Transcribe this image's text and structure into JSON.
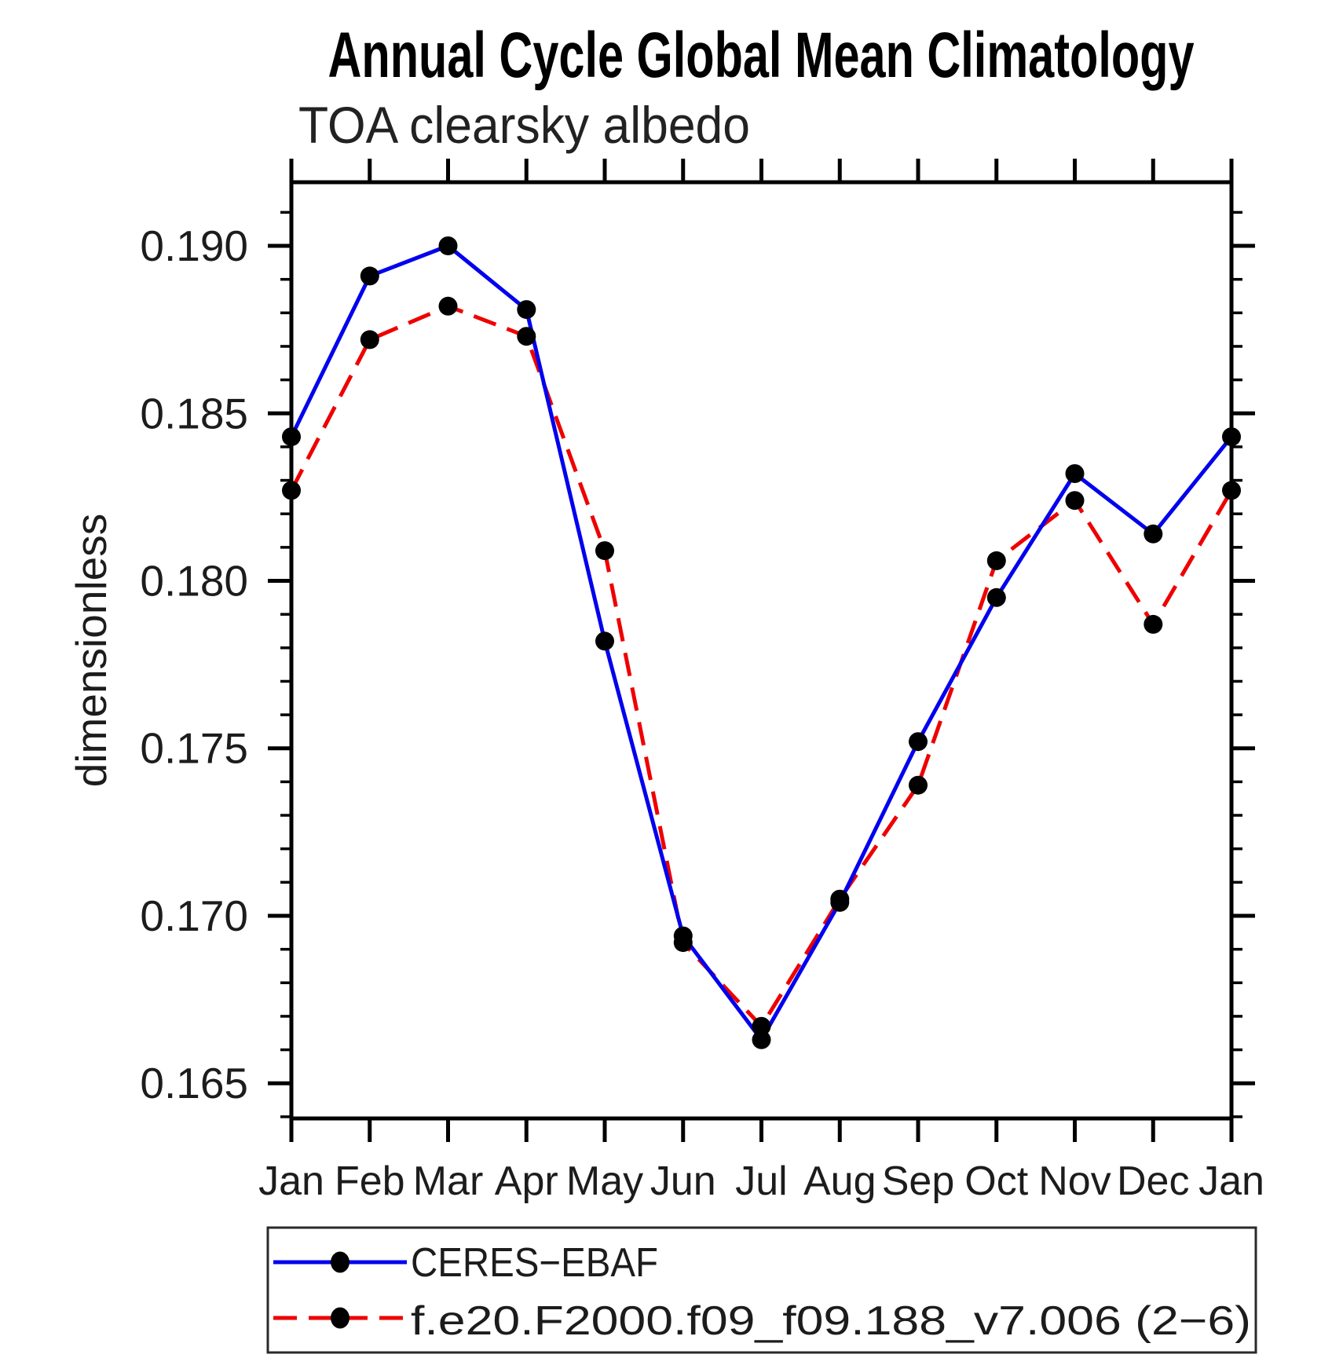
{
  "chart_data": {
    "type": "line",
    "title": "Annual Cycle Global Mean Climatology",
    "subtitle": "TOA clearsky albedo",
    "ylabel": "dimensionless",
    "x_labels": [
      "Jan",
      "Feb",
      "Mar",
      "Apr",
      "May",
      "Jun",
      "Jul",
      "Aug",
      "Sep",
      "Oct",
      "Nov",
      "Dec",
      "Jan"
    ],
    "series": [
      {
        "key": "ceres-ebaf",
        "name": "CERES−EBAF",
        "color": "#0000ee",
        "style": "solid",
        "marker": "filled-circle",
        "marker_color": "#000000",
        "values": [
          0.1843,
          0.1891,
          0.19,
          0.1881,
          0.1782,
          0.1694,
          0.1663,
          0.1704,
          0.1752,
          0.1795,
          0.1832,
          0.1814,
          0.1843
        ]
      },
      {
        "key": "model",
        "name": "f.e20.F2000.f09_f09.188_v7.006 (2−6)",
        "color": "#ee0000",
        "style": "dashed",
        "marker": "filled-circle",
        "marker_color": "#000000",
        "values": [
          0.1827,
          0.1872,
          0.1882,
          0.1873,
          0.1809,
          0.1692,
          0.1667,
          0.1705,
          0.1739,
          0.1806,
          0.1824,
          0.1787,
          0.1827
        ]
      }
    ],
    "y_ticks": {
      "major_values": [
        0.19,
        0.185,
        0.18,
        0.175,
        0.17,
        0.165
      ],
      "major_labels": [
        "0.190",
        "0.185",
        "0.180",
        "0.175",
        "0.170",
        "0.165"
      ],
      "minor_step": 0.001,
      "minor_start": 0.164,
      "minor_end": 0.191
    },
    "ylim": [
      0.16395,
      0.1919
    ],
    "grid": false,
    "legend_position": "bottom-left-box",
    "frame_color": "#000000",
    "background_color": "#ffffff"
  }
}
